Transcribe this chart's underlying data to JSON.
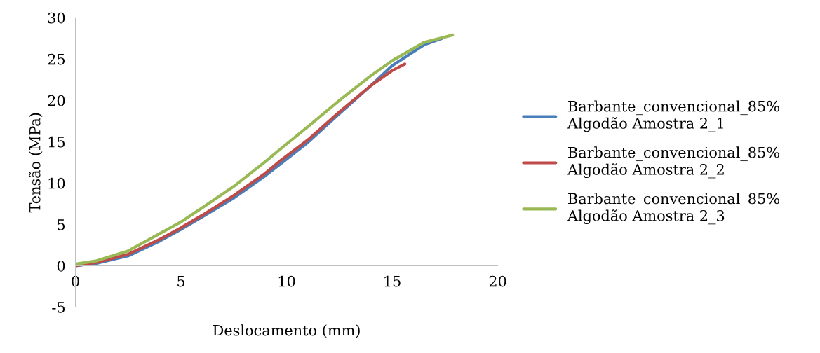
{
  "chart_data": {
    "type": "line",
    "xlabel": "Deslocamento (mm)",
    "ylabel": "Tensão (MPa)",
    "xlim": [
      0,
      20
    ],
    "ylim": [
      -5,
      30
    ],
    "xticks": [
      0,
      5,
      10,
      15,
      20
    ],
    "yticks": [
      -5,
      0,
      5,
      10,
      15,
      20,
      25,
      30
    ],
    "legend": "right",
    "marker": "none",
    "line_style": "solid",
    "grid": false,
    "series": [
      {
        "name": "Barbante_convencional_85%\nAlgodão Amostra 2_1",
        "color": "#4a7ebb",
        "x": [
          0,
          1,
          2.5,
          4,
          5,
          6,
          7.5,
          9,
          9.75,
          11,
          12.5,
          14,
          15,
          16.5,
          17.36
        ],
        "values": [
          0,
          0.3,
          1.2,
          3.0,
          4.4,
          5.9,
          8.2,
          10.9,
          12.4,
          14.9,
          18.4,
          21.8,
          24.2,
          26.7,
          27.5
        ]
      },
      {
        "name": "Barbante_convencional_85%\nAlgodão Amostra 2_2",
        "color": "#be4b48",
        "x": [
          0,
          1,
          2.5,
          4,
          5,
          6,
          7.5,
          9,
          9.75,
          11,
          12.5,
          14,
          15,
          15.6
        ],
        "values": [
          0,
          0.4,
          1.4,
          3.2,
          4.6,
          6.1,
          8.5,
          11.2,
          12.8,
          15.2,
          18.6,
          21.8,
          23.6,
          24.4
        ]
      },
      {
        "name": "Barbante_convencional_85%\nAlgodão Amostra 2_3",
        "color": "#98b954",
        "x": [
          0,
          1,
          2.5,
          4,
          5,
          6,
          7.5,
          9,
          9.75,
          11,
          12.5,
          14,
          15,
          16.5,
          17.86
        ],
        "values": [
          0.2,
          0.6,
          1.8,
          3.9,
          5.3,
          7.0,
          9.6,
          12.6,
          14.2,
          16.8,
          20.0,
          23.0,
          24.8,
          27.0,
          27.9
        ]
      }
    ]
  }
}
